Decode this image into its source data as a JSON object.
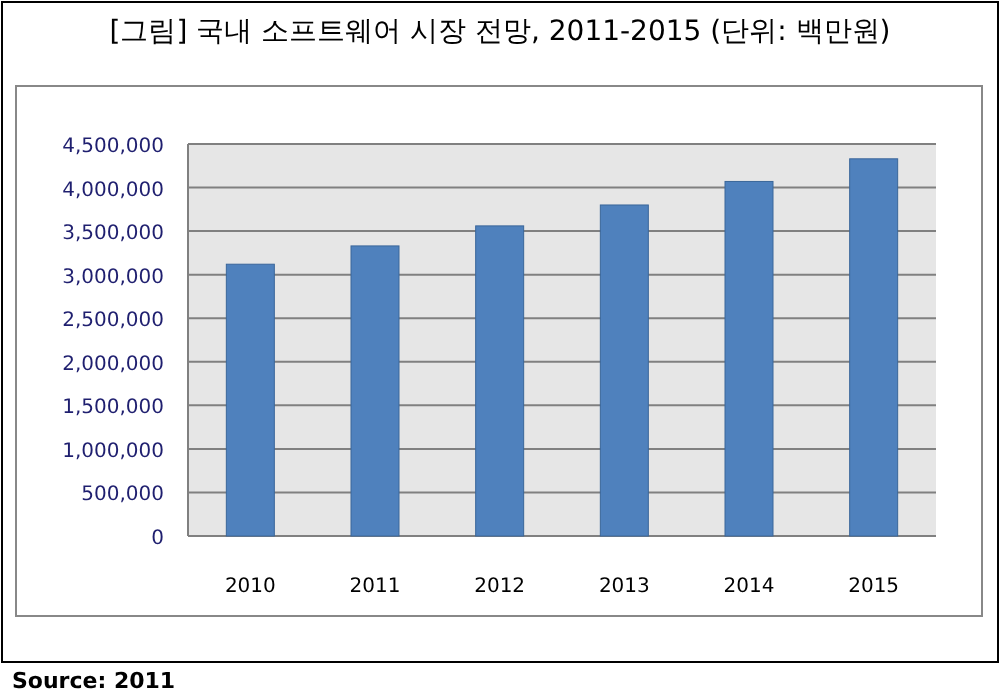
{
  "chart_data": {
    "type": "bar",
    "title": "[그림] 국내 소프트웨어 시장 전망, 2011-2015 (단위: 백만원)",
    "categories": [
      "2010",
      "2011",
      "2012",
      "2013",
      "2014",
      "2015"
    ],
    "values": [
      3120000,
      3330000,
      3560000,
      3800000,
      4070000,
      4330000
    ],
    "color": "#4f81bd",
    "ylim": [
      0,
      4500000
    ],
    "yticks": [
      {
        "value": 0,
        "label": "0"
      },
      {
        "value": 500000,
        "label": "500,000"
      },
      {
        "value": 1000000,
        "label": "1,000,000"
      },
      {
        "value": 1500000,
        "label": "1,500,000"
      },
      {
        "value": 2000000,
        "label": "2,000,000"
      },
      {
        "value": 2500000,
        "label": "2,500,000"
      },
      {
        "value": 3000000,
        "label": "3,000,000"
      },
      {
        "value": 3500000,
        "label": "3,500,000"
      },
      {
        "value": 4000000,
        "label": "4,000,000"
      },
      {
        "value": 4500000,
        "label": "4,500,000"
      }
    ],
    "grid": "y",
    "annotations": [
      "Source: 2011"
    ]
  }
}
